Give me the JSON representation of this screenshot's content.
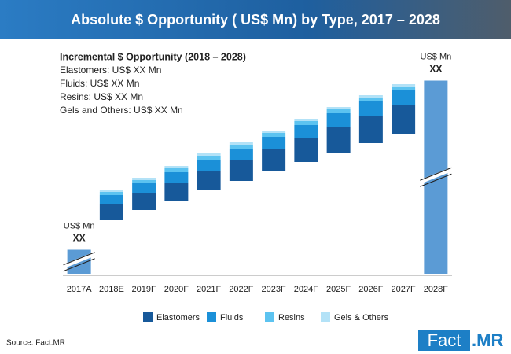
{
  "chart_data": {
    "type": "waterfall",
    "title": "Absolute $ Opportunity ( US$ Mn) by Type, 2017 – 2028",
    "categories": [
      "2017A",
      "2018E",
      "2019F",
      "2020F",
      "2021F",
      "2022F",
      "2023F",
      "2024F",
      "2025F",
      "2026F",
      "2027F",
      "2028F"
    ],
    "totals": [
      13,
      null,
      null,
      null,
      null,
      null,
      null,
      null,
      null,
      null,
      null,
      99
    ],
    "total_unit": "US$ Mn",
    "total_value_label": "XX",
    "base_values": [
      null,
      28,
      33.2,
      38,
      43.2,
      48,
      52.8,
      57.6,
      62.4,
      67.2,
      72,
      null
    ],
    "series": [
      {
        "name": "Elastomers",
        "color": "#17599a",
        "values": [
          null,
          8.4,
          8.8,
          9.2,
          10,
          10.4,
          11.2,
          12,
          12.8,
          13.6,
          14.4,
          null
        ]
      },
      {
        "name": "Fluids",
        "color": "#1b90d8",
        "values": [
          null,
          4.4,
          4.8,
          5.2,
          5.6,
          6,
          6.4,
          6.8,
          7.2,
          7.6,
          7.6,
          null
        ]
      },
      {
        "name": "Resins",
        "color": "#5cc3f0",
        "values": [
          null,
          1.6,
          1.6,
          2,
          2,
          2,
          2,
          2,
          2,
          2,
          2,
          null
        ]
      },
      {
        "name": "Gels & Others",
        "color": "#b3e2f7",
        "values": [
          null,
          0.8,
          1.2,
          1.2,
          1.2,
          1.2,
          1.2,
          1.2,
          1.2,
          1.2,
          1.2,
          null
        ]
      }
    ],
    "total_color": "#5b9bd5",
    "ylim": [
      0,
      100
    ],
    "annotation": {
      "title": "Incremental $ Opportunity (2018 – 2028)",
      "lines": [
        "Elastomers: US$  XX Mn",
        "Fluids: US$  XX Mn",
        "Resins: US$  XX Mn",
        "Gels and Others: US$  XX Mn"
      ]
    },
    "source": "Source: Fact.MR",
    "logo": {
      "box": "Fact",
      "suffix": ".MR"
    }
  }
}
